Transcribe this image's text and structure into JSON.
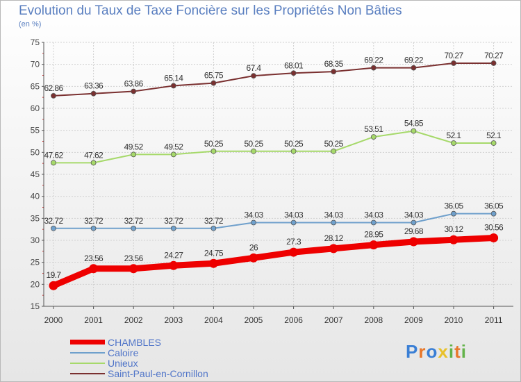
{
  "chart_data": {
    "type": "line",
    "title": "Evolution du Taux de Taxe Foncière sur les Propriétés Non Bâties",
    "ylabel": "(en %)",
    "xlabel": "",
    "x": [
      "2000",
      "2001",
      "2002",
      "2003",
      "2004",
      "2005",
      "2006",
      "2007",
      "2008",
      "2009",
      "2010",
      "2011"
    ],
    "ylim": [
      15,
      75
    ],
    "yticks": [
      "15",
      "20",
      "25",
      "30",
      "35",
      "40",
      "45",
      "50",
      "55",
      "60",
      "65",
      "70",
      "75"
    ],
    "grid": true,
    "series": [
      {
        "name": "Saint-Paul-en-Cornillon",
        "color": "#7a3030",
        "values": [
          62.86,
          63.36,
          63.86,
          65.14,
          65.75,
          67.4,
          68.01,
          68.35,
          69.22,
          69.22,
          70.27,
          70.27
        ],
        "labels": [
          "62.86",
          "63.36",
          "63.86",
          "65.14",
          "65.75",
          "67.4",
          "68.01",
          "68.35",
          "69.22",
          "69.22",
          "70.27",
          "70.27"
        ]
      },
      {
        "name": "Unieux",
        "color": "#a6d96a",
        "values": [
          47.62,
          47.62,
          49.52,
          49.52,
          50.25,
          50.25,
          50.25,
          50.25,
          53.51,
          54.85,
          52.1,
          52.1
        ],
        "labels": [
          "47.62",
          "47.62",
          "49.52",
          "49.52",
          "50.25",
          "50.25",
          "50.25",
          "50.25",
          "53.51",
          "54.85",
          "52.1",
          "52.1"
        ]
      },
      {
        "name": "Caloire",
        "color": "#6fa0cc",
        "values": [
          32.72,
          32.72,
          32.72,
          32.72,
          32.72,
          34.03,
          34.03,
          34.03,
          34.03,
          34.03,
          36.05,
          36.05
        ],
        "labels": [
          "32.72",
          "32.72",
          "32.72",
          "32.72",
          "32.72",
          "34.03",
          "34.03",
          "34.03",
          "34.03",
          "34.03",
          "36.05",
          "36.05"
        ]
      },
      {
        "name": "CHAMBLES",
        "color": "#ee0000",
        "values": [
          19.7,
          23.56,
          23.56,
          24.27,
          24.75,
          26,
          27.3,
          28.12,
          28.95,
          29.68,
          30.12,
          30.56
        ],
        "labels": [
          "19.7",
          "23.56",
          "23.56",
          "24.27",
          "24.75",
          "26",
          "27.3",
          "28.12",
          "28.95",
          "29.68",
          "30.12",
          "30.56"
        ]
      }
    ],
    "legend": [
      {
        "name": "CHAMBLES",
        "color": "#ee0000"
      },
      {
        "name": "Caloire",
        "color": "#6fa0cc"
      },
      {
        "name": "Unieux",
        "color": "#a6d96a"
      },
      {
        "name": "Saint-Paul-en-Cornillon",
        "color": "#7a3030"
      }
    ],
    "legend_position": "bottom-left"
  },
  "logo": {
    "text": "Proxiti",
    "letters": [
      {
        "char": "P",
        "color": "#3a7fd5"
      },
      {
        "char": "r",
        "color": "#e8782a"
      },
      {
        "char": "o",
        "color": "#3a7fd5"
      },
      {
        "char": "x",
        "color": "#e8c12a"
      },
      {
        "char": "i",
        "color": "#63b34a"
      },
      {
        "char": "t",
        "color": "#e8782a"
      },
      {
        "char": "i",
        "color": "#63b34a"
      }
    ]
  }
}
